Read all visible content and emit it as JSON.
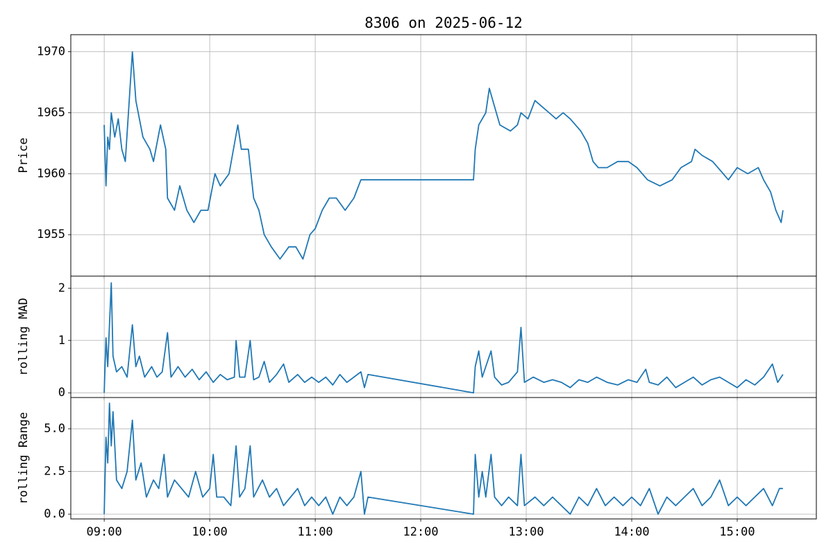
{
  "chart_data": [
    {
      "type": "line",
      "title": "8306 on 2025-06-12",
      "y_label": "Price",
      "color": "#1f77b4",
      "grid": true,
      "xlim": [
        "08:41",
        "15:45"
      ],
      "xticks": [
        "09:00",
        "10:00",
        "11:00",
        "12:00",
        "13:00",
        "14:00",
        "15:00"
      ],
      "ylim": [
        1951.6,
        1971.4
      ],
      "yticks": [
        1955,
        1960,
        1965,
        1970
      ],
      "x": [
        "09:00",
        "09:01",
        "09:02",
        "09:03",
        "09:04",
        "09:06",
        "09:08",
        "09:10",
        "09:12",
        "09:16",
        "09:18",
        "09:22",
        "09:26",
        "09:28",
        "09:32",
        "09:35",
        "09:36",
        "09:40",
        "09:43",
        "09:47",
        "09:51",
        "09:55",
        "09:59",
        "10:03",
        "10:06",
        "10:11",
        "10:16",
        "10:18",
        "10:22",
        "10:25",
        "10:28",
        "10:31",
        "10:35",
        "10:40",
        "10:45",
        "10:49",
        "10:53",
        "10:57",
        "11:00",
        "11:04",
        "11:08",
        "11:12",
        "11:17",
        "11:22",
        "11:26",
        "11:30",
        "12:30",
        "12:31",
        "12:33",
        "12:37",
        "12:39",
        "12:41",
        "12:45",
        "12:51",
        "12:55",
        "12:57",
        "13:01",
        "13:05",
        "13:09",
        "13:13",
        "13:17",
        "13:21",
        "13:25",
        "13:31",
        "13:35",
        "13:38",
        "13:41",
        "13:46",
        "13:52",
        "13:58",
        "14:03",
        "14:09",
        "14:16",
        "14:23",
        "14:28",
        "14:34",
        "14:36",
        "14:40",
        "14:46",
        "14:52",
        "14:55",
        "15:00",
        "15:06",
        "15:12",
        "15:15",
        "15:19",
        "15:22",
        "15:25",
        "15:26"
      ],
      "values": [
        1964,
        1959,
        1963,
        1962,
        1965,
        1963,
        1964.5,
        1962,
        1961,
        1970,
        1966,
        1963,
        1962,
        1961,
        1964,
        1962,
        1958,
        1957,
        1959,
        1957,
        1956,
        1957,
        1957,
        1960,
        1959,
        1960,
        1964,
        1962,
        1962,
        1958,
        1957,
        1955,
        1954,
        1953,
        1954,
        1954,
        1953,
        1955,
        1955.5,
        1957,
        1958,
        1958,
        1957,
        1958,
        1959.5,
        1959.5,
        1959.5,
        1962,
        1964,
        1965,
        1967,
        1966,
        1964,
        1963.5,
        1964,
        1965,
        1964.5,
        1966,
        1965.5,
        1965,
        1964.5,
        1965,
        1964.5,
        1963.5,
        1962.5,
        1961,
        1960.5,
        1960.5,
        1961,
        1961,
        1960.5,
        1959.5,
        1959,
        1959.5,
        1960.5,
        1961,
        1962,
        1961.5,
        1961,
        1960,
        1959.5,
        1960.5,
        1960,
        1960.5,
        1959.5,
        1958.5,
        1957,
        1956,
        1957
      ]
    },
    {
      "type": "line",
      "y_label": "rolling MAD",
      "color": "#1f77b4",
      "grid": true,
      "xlim": [
        "08:41",
        "15:45"
      ],
      "xticks": [
        "09:00",
        "10:00",
        "11:00",
        "12:00",
        "13:00",
        "14:00",
        "15:00"
      ],
      "ylim": [
        -0.09,
        2.23
      ],
      "yticks": [
        0,
        1,
        2
      ],
      "x": [
        "09:00",
        "09:01",
        "09:02",
        "09:03",
        "09:04",
        "09:05",
        "09:07",
        "09:10",
        "09:13",
        "09:16",
        "09:18",
        "09:20",
        "09:23",
        "09:27",
        "09:30",
        "09:33",
        "09:36",
        "09:38",
        "09:42",
        "09:46",
        "09:50",
        "09:54",
        "09:58",
        "10:02",
        "10:06",
        "10:10",
        "10:14",
        "10:15",
        "10:17",
        "10:20",
        "10:23",
        "10:25",
        "10:28",
        "10:31",
        "10:34",
        "10:38",
        "10:42",
        "10:45",
        "10:50",
        "10:54",
        "10:58",
        "11:02",
        "11:06",
        "11:10",
        "11:14",
        "11:18",
        "11:22",
        "11:26",
        "11:28",
        "11:30",
        "12:30",
        "12:31",
        "12:33",
        "12:35",
        "12:40",
        "12:42",
        "12:46",
        "12:50",
        "12:55",
        "12:57",
        "12:59",
        "13:04",
        "13:10",
        "13:15",
        "13:20",
        "13:25",
        "13:30",
        "13:35",
        "13:40",
        "13:46",
        "13:52",
        "13:58",
        "14:03",
        "14:08",
        "14:10",
        "14:15",
        "14:20",
        "14:25",
        "14:30",
        "14:35",
        "14:40",
        "14:45",
        "14:50",
        "14:55",
        "15:00",
        "15:05",
        "15:10",
        "15:15",
        "15:20",
        "15:23",
        "15:26"
      ],
      "values": [
        0,
        1.05,
        0.5,
        1.3,
        2.1,
        0.7,
        0.4,
        0.5,
        0.3,
        1.3,
        0.5,
        0.7,
        0.3,
        0.5,
        0.3,
        0.4,
        1.15,
        0.3,
        0.5,
        0.3,
        0.45,
        0.25,
        0.4,
        0.2,
        0.35,
        0.25,
        0.3,
        1.0,
        0.3,
        0.3,
        1.0,
        0.25,
        0.3,
        0.6,
        0.2,
        0.35,
        0.55,
        0.2,
        0.35,
        0.2,
        0.3,
        0.2,
        0.3,
        0.15,
        0.35,
        0.2,
        0.3,
        0.4,
        0.1,
        0.35,
        0,
        0.5,
        0.8,
        0.3,
        0.8,
        0.3,
        0.15,
        0.2,
        0.4,
        1.25,
        0.2,
        0.3,
        0.2,
        0.25,
        0.2,
        0.1,
        0.25,
        0.2,
        0.3,
        0.2,
        0.15,
        0.25,
        0.2,
        0.45,
        0.2,
        0.15,
        0.3,
        0.1,
        0.2,
        0.3,
        0.15,
        0.25,
        0.3,
        0.2,
        0.1,
        0.25,
        0.15,
        0.3,
        0.55,
        0.2,
        0.35
      ]
    },
    {
      "type": "line",
      "y_label": "rolling Range",
      "color": "#1f77b4",
      "grid": true,
      "xlim": [
        "08:41",
        "15:45"
      ],
      "xticks": [
        "09:00",
        "10:00",
        "11:00",
        "12:00",
        "13:00",
        "14:00",
        "15:00"
      ],
      "ylim": [
        -0.28,
        6.83
      ],
      "yticks": [
        {
          "value": 0,
          "label": "0.0"
        },
        {
          "value": 2.5,
          "label": "2.5"
        },
        {
          "value": 5,
          "label": "5.0"
        }
      ],
      "x": [
        "09:00",
        "09:01",
        "09:02",
        "09:03",
        "09:04",
        "09:05",
        "09:07",
        "09:10",
        "09:13",
        "09:16",
        "09:18",
        "09:21",
        "09:24",
        "09:28",
        "09:31",
        "09:34",
        "09:36",
        "09:40",
        "09:44",
        "09:48",
        "09:52",
        "09:56",
        "10:00",
        "10:02",
        "10:04",
        "10:08",
        "10:12",
        "10:15",
        "10:17",
        "10:20",
        "10:23",
        "10:25",
        "10:30",
        "10:34",
        "10:38",
        "10:42",
        "10:46",
        "10:50",
        "10:54",
        "10:58",
        "11:02",
        "11:06",
        "11:10",
        "11:14",
        "11:18",
        "11:22",
        "11:26",
        "11:28",
        "11:30",
        "12:30",
        "12:31",
        "12:33",
        "12:35",
        "12:37",
        "12:40",
        "12:42",
        "12:46",
        "12:50",
        "12:55",
        "12:57",
        "12:59",
        "13:05",
        "13:10",
        "13:15",
        "13:20",
        "13:25",
        "13:30",
        "13:35",
        "13:40",
        "13:45",
        "13:50",
        "13:55",
        "14:00",
        "14:05",
        "14:10",
        "14:15",
        "14:20",
        "14:25",
        "14:30",
        "14:35",
        "14:40",
        "14:45",
        "14:50",
        "14:55",
        "15:00",
        "15:05",
        "15:10",
        "15:15",
        "15:20",
        "15:24",
        "15:26"
      ],
      "values": [
        0,
        4.5,
        3,
        6.5,
        4,
        6,
        2,
        1.5,
        2.5,
        5.5,
        2,
        3,
        1,
        2,
        1.5,
        3.5,
        1,
        2,
        1.5,
        1,
        2.5,
        1,
        1.5,
        3.5,
        1,
        1,
        0.5,
        4,
        1,
        1.5,
        4,
        1,
        2,
        1,
        1.5,
        0.5,
        1,
        1.5,
        0.5,
        1,
        0.5,
        1,
        0,
        1,
        0.5,
        1,
        2.5,
        0,
        1,
        0,
        3.5,
        1,
        2.5,
        1,
        3.5,
        1,
        0.5,
        1,
        0.5,
        3.5,
        0.5,
        1,
        0.5,
        1,
        0.5,
        0,
        1,
        0.5,
        1.5,
        0.5,
        1,
        0.5,
        1,
        0.5,
        1.5,
        0,
        1,
        0.5,
        1,
        1.5,
        0.5,
        1,
        2,
        0.5,
        1,
        0.5,
        1,
        1.5,
        0.5,
        1.5,
        1.5
      ]
    }
  ]
}
